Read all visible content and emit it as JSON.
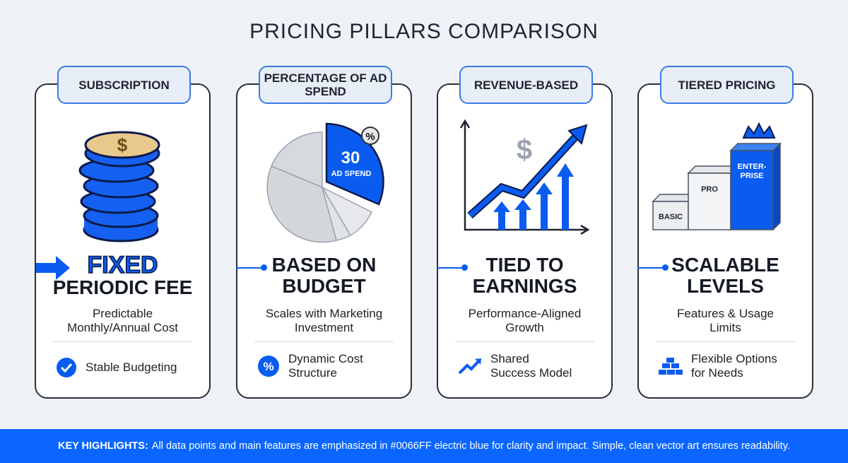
{
  "title": "PRICING PILLARS COMPARISON",
  "accent": "#0066FF",
  "pillars": [
    {
      "tab": "SUBSCRIPTION",
      "head_blue": "FIXED",
      "head": "PERIODIC FEE",
      "sub": "Predictable Monthly/Annual Cost",
      "feature": "Stable Budgeting",
      "feature_icon": "check-badge-icon",
      "illustration": "coin-stack-icon"
    },
    {
      "tab": "PERCENTAGE OF AD SPEND",
      "head": "BASED ON BUDGET",
      "sub": "Scales with Marketing Investment",
      "feature": "Dynamic Cost Structure",
      "feature_icon": "percent-badge-icon",
      "illustration": "pie-chart",
      "pie_value": "30",
      "pie_label": "AD SPEND",
      "pie_badge": "%"
    },
    {
      "tab": "REVENUE-BASED",
      "head": "TIED TO EARNINGS",
      "sub": "Performance-Aligned Growth",
      "feature": "Shared Success Model",
      "feature_icon": "trend-arrow-icon",
      "illustration": "growth-chart",
      "chart_symbol": "$"
    },
    {
      "tab": "TIERED PRICING",
      "head": "SCALABLE LEVELS",
      "sub": "Features & Usage Limits",
      "feature": "Flexible Options for Needs",
      "feature_icon": "stacked-blocks-icon",
      "illustration": "tier-steps",
      "tiers": [
        "BASIC",
        "PRO",
        "ENTER-PRISE"
      ]
    }
  ],
  "footer": {
    "label": "KEY HIGHLIGHTS:",
    "text": "All data points and main features are emphasized in #0066FF electric blue for clarity and impact. Simple, clean vector art ensures readability."
  }
}
